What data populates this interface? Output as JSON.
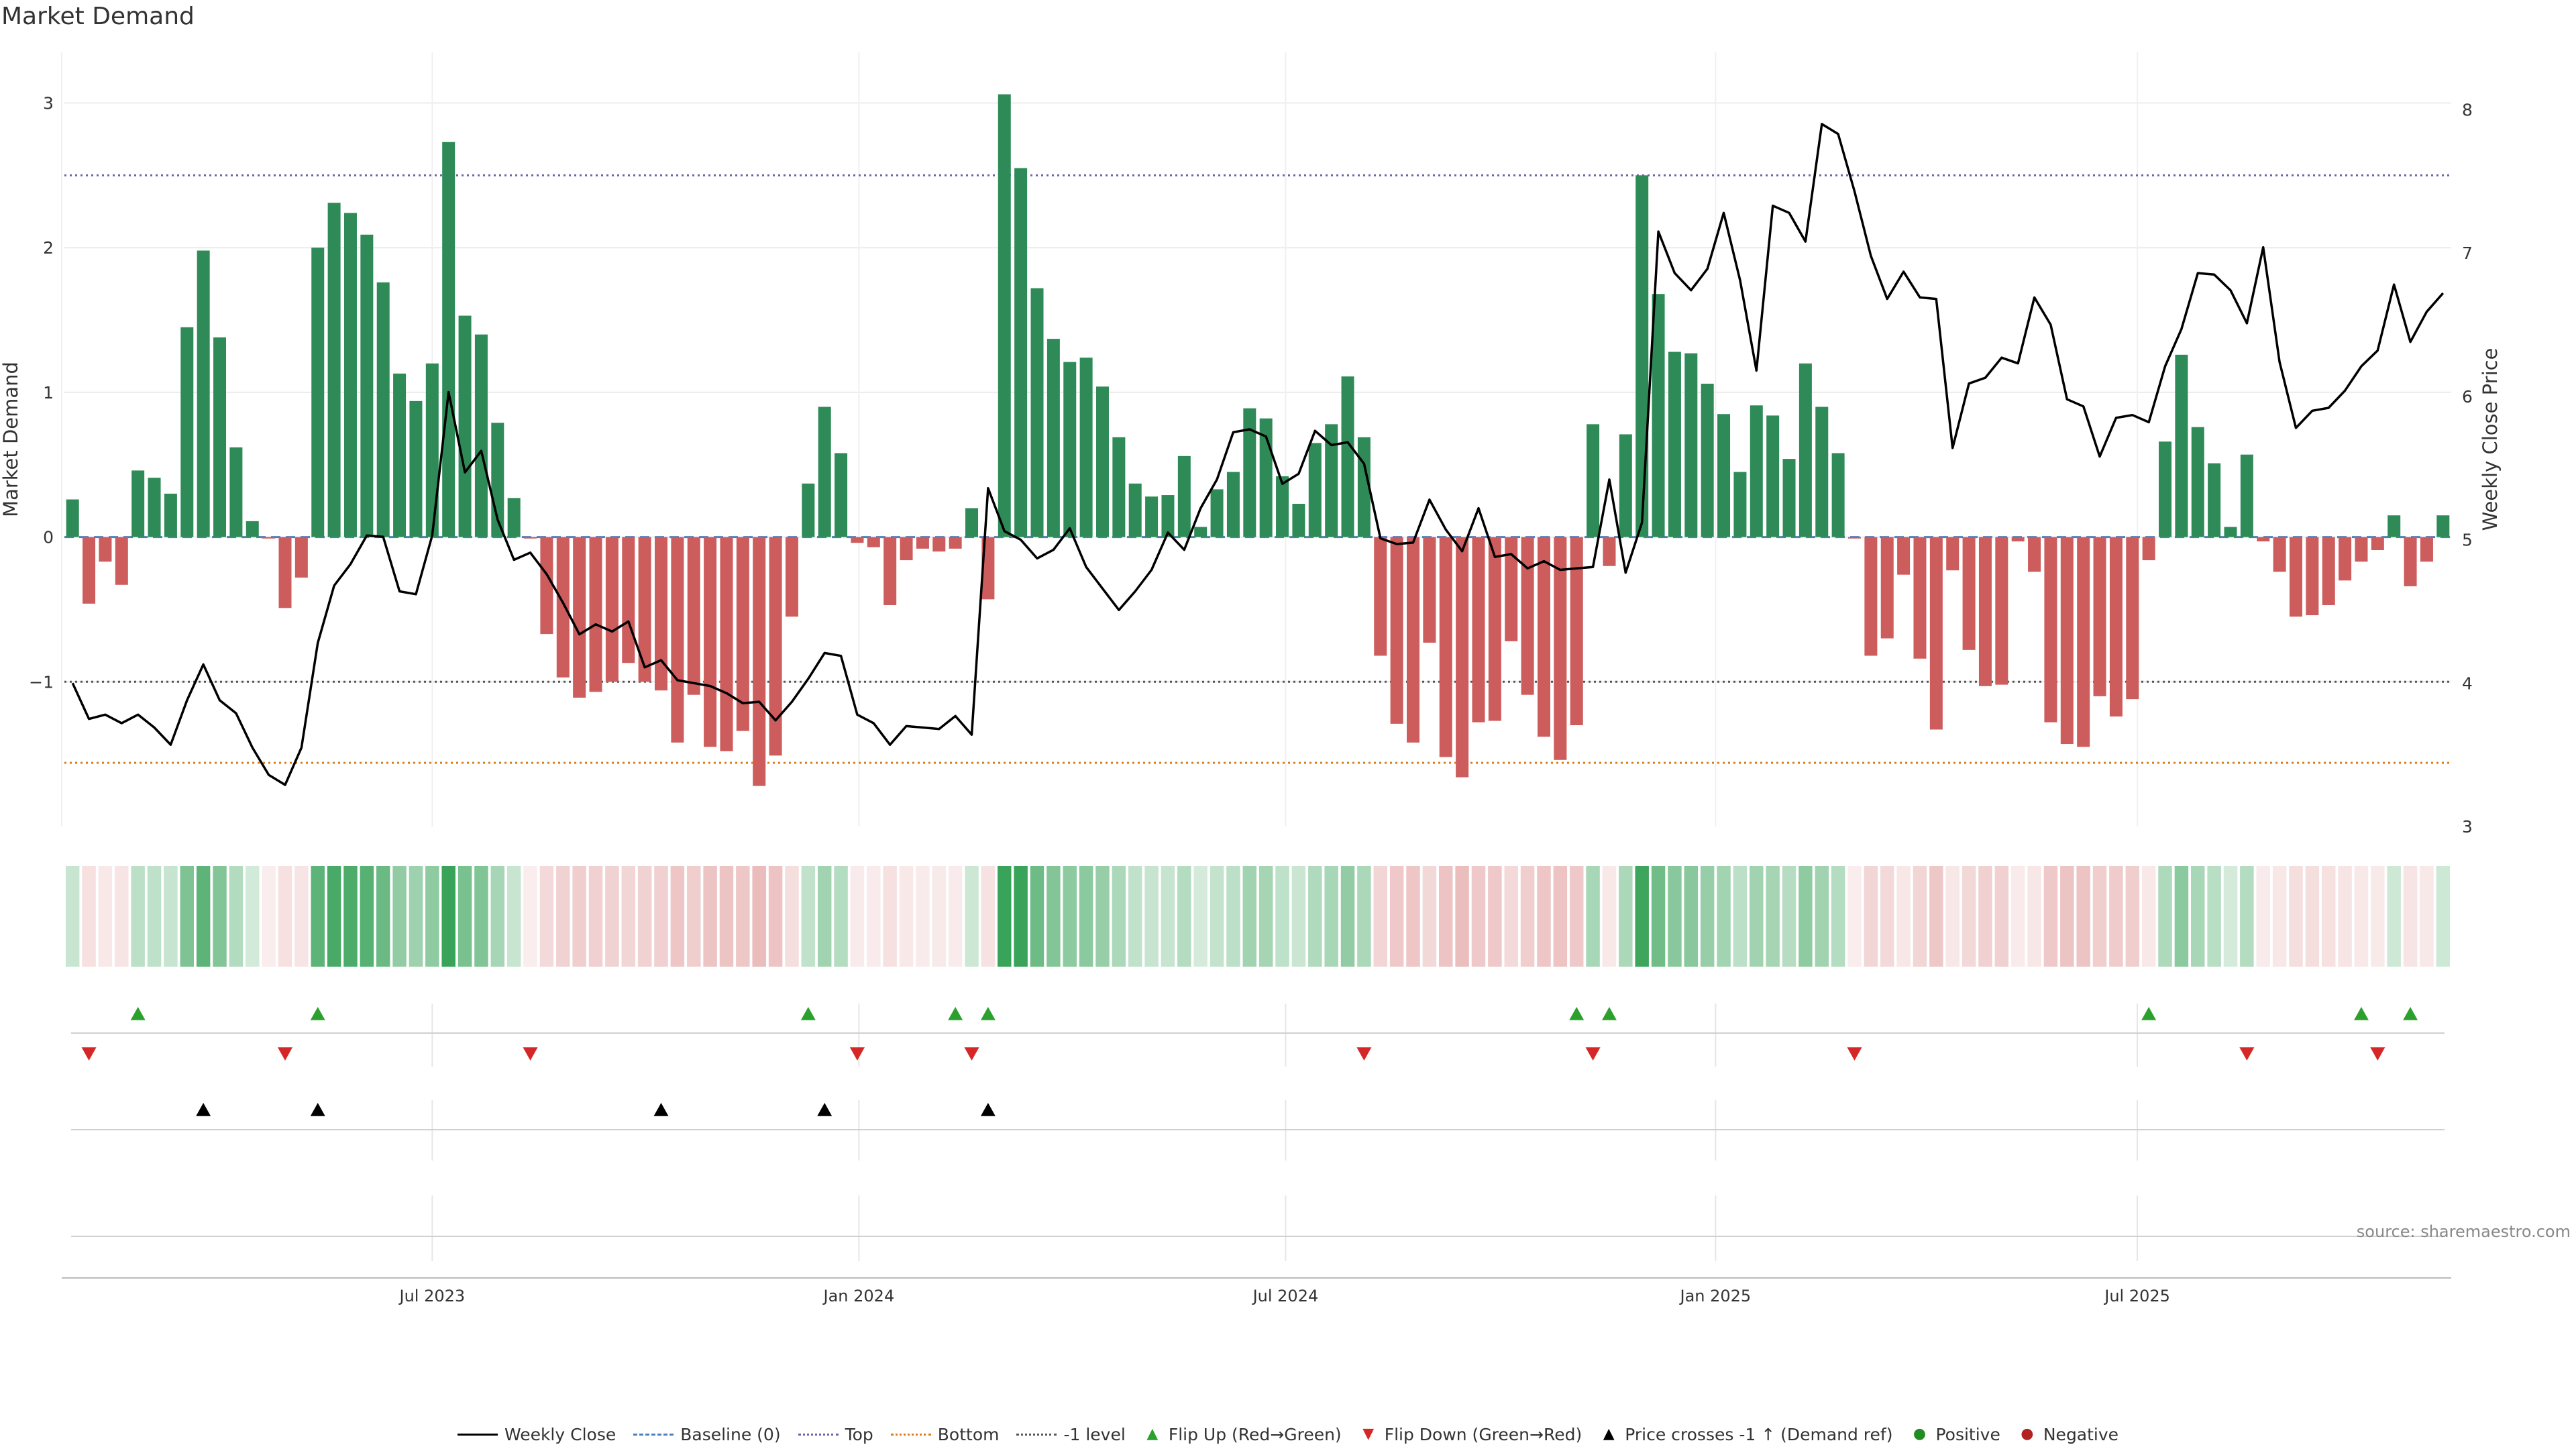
{
  "title": "Market Demand",
  "source": "source: sharemaestro.com",
  "colors": {
    "positive": "#2e8b57",
    "negative": "#cd5c5c",
    "top_line": "#6b63a8",
    "bottom_line": "#e07d10",
    "minus1_line": "#555555",
    "flip_up": "#2ca02c",
    "flip_down": "#d62728",
    "cross": "#000000"
  },
  "legend": [
    {
      "label": "Weekly Close",
      "icon": "solid-line"
    },
    {
      "label": "Baseline (0)",
      "icon": "dashed-line"
    },
    {
      "label": "Top",
      "icon": "dotted-line-purple"
    },
    {
      "label": "Bottom",
      "icon": "dotted-line-orange"
    },
    {
      "label": "-1 level",
      "icon": "dotted-line-gray"
    },
    {
      "label": "Flip Up (Red→Green)",
      "icon": "triangle-up-green"
    },
    {
      "label": "Flip Down (Green→Red)",
      "icon": "triangle-down-red"
    },
    {
      "label": "Price crosses -1 ↑ (Demand ref)",
      "icon": "triangle-up-black"
    },
    {
      "label": "Positive",
      "icon": "circle-green"
    },
    {
      "label": "Negative",
      "icon": "circle-red"
    }
  ],
  "chart_data": {
    "type": "bar",
    "ylabel": "Market Demand",
    "y2label": "Weekly Close Price",
    "ylim": [
      -2.0,
      3.35
    ],
    "y2lim": [
      3.0,
      8.4
    ],
    "yticks": [
      -1,
      0,
      1,
      2,
      3
    ],
    "yticks_labels": [
      "−1",
      "0",
      "1",
      "2",
      "3"
    ],
    "y2ticks": [
      3,
      4,
      5,
      6,
      7,
      8
    ],
    "xticks": [
      "Jul 2023",
      "Jan 2024",
      "Jul 2024",
      "Jan 2025",
      "Jul 2025"
    ],
    "xtick_weeks": [
      22.5,
      48.6,
      74.7,
      101.0,
      126.8
    ],
    "reference_lines": {
      "top": 2.5,
      "bottom": -1.56,
      "minus1": -1.0,
      "baseline": 0
    },
    "grid": true,
    "demand": [
      0.26,
      -0.46,
      -0.17,
      -0.33,
      0.46,
      0.41,
      0.3,
      1.45,
      1.98,
      1.38,
      0.62,
      0.11,
      -0.01,
      -0.49,
      -0.28,
      2.0,
      2.31,
      2.24,
      2.09,
      1.76,
      1.13,
      0.94,
      1.2,
      2.73,
      1.53,
      1.4,
      0.79,
      0.27,
      -0.01,
      -0.67,
      -0.97,
      -1.11,
      -1.07,
      -1.0,
      -0.87,
      -1.0,
      -1.06,
      -1.42,
      -1.09,
      -1.45,
      -1.48,
      -1.34,
      -1.72,
      -1.51,
      -0.55,
      0.37,
      0.9,
      0.58,
      -0.04,
      -0.07,
      -0.47,
      -0.16,
      -0.08,
      -0.1,
      -0.08,
      0.2,
      -0.43,
      3.06,
      2.55,
      1.72,
      1.37,
      1.21,
      1.24,
      1.04,
      0.69,
      0.37,
      0.28,
      0.29,
      0.56,
      0.07,
      0.33,
      0.45,
      0.89,
      0.82,
      0.42,
      0.23,
      0.65,
      0.78,
      1.11,
      0.69,
      -0.82,
      -1.29,
      -1.42,
      -0.73,
      -1.52,
      -1.66,
      -1.28,
      -1.27,
      -0.72,
      -1.09,
      -1.38,
      -1.54,
      -1.3,
      0.78,
      -0.2,
      0.71,
      2.5,
      1.68,
      1.28,
      1.27,
      1.06,
      0.85,
      0.45,
      0.91,
      0.84,
      0.54,
      1.2,
      0.9,
      0.58,
      -0.01,
      -0.82,
      -0.7,
      -0.26,
      -0.84,
      -1.33,
      -0.23,
      -0.78,
      -1.03,
      -1.02,
      -0.03,
      -0.24,
      -1.28,
      -1.43,
      -1.45,
      -1.1,
      -1.24,
      -1.12,
      -0.16,
      0.66,
      1.26,
      0.76,
      0.51,
      0.07,
      0.57,
      -0.03,
      -0.24,
      -0.55,
      -0.54,
      -0.47,
      -0.3,
      -0.17,
      -0.09,
      0.15,
      -0.34,
      -0.17,
      0.15
    ],
    "weekly_close": [
      4.0,
      3.75,
      3.78,
      3.72,
      3.78,
      3.69,
      3.57,
      3.88,
      4.13,
      3.88,
      3.79,
      3.55,
      3.36,
      3.29,
      3.55,
      4.28,
      4.68,
      4.83,
      5.03,
      5.02,
      4.64,
      4.62,
      5.03,
      6.03,
      5.47,
      5.62,
      5.14,
      4.86,
      4.91,
      4.76,
      4.56,
      4.34,
      4.41,
      4.36,
      4.43,
      4.11,
      4.16,
      4.02,
      4.0,
      3.98,
      3.93,
      3.86,
      3.87,
      3.74,
      3.87,
      4.03,
      4.21,
      4.19,
      3.78,
      3.72,
      3.57,
      3.7,
      3.69,
      3.68,
      3.77,
      3.64,
      5.36,
      5.06,
      5.0,
      4.87,
      4.93,
      5.08,
      4.81,
      4.66,
      4.51,
      4.64,
      4.79,
      5.05,
      4.93,
      5.22,
      5.42,
      5.75,
      5.77,
      5.72,
      5.39,
      5.46,
      5.76,
      5.66,
      5.68,
      5.53,
      5.01,
      4.97,
      4.98,
      5.28,
      5.07,
      4.92,
      5.22,
      4.88,
      4.9,
      4.8,
      4.85,
      4.79,
      4.8,
      4.81,
      5.42,
      4.77,
      5.12,
      7.15,
      6.86,
      6.74,
      6.89,
      7.28,
      6.81,
      6.18,
      7.33,
      7.28,
      7.08,
      7.9,
      7.83,
      7.43,
      6.98,
      6.68,
      6.87,
      6.69,
      6.68,
      5.64,
      6.09,
      6.13,
      6.27,
      6.23,
      6.69,
      6.5,
      5.98,
      5.93,
      5.58,
      5.85,
      5.87,
      5.82,
      6.21,
      6.47,
      6.86,
      6.85,
      6.74,
      6.51,
      7.04,
      6.24,
      5.78,
      5.9,
      5.92,
      6.04,
      6.21,
      6.32,
      6.78,
      6.38,
      6.59,
      6.72
    ],
    "intensity_strip": {
      "positive_color": "#2e8b57",
      "negative_color": "#cd5c5c"
    },
    "events": {
      "flip_up_weeks": [
        4,
        15,
        45,
        54,
        56,
        92,
        94,
        127,
        140,
        143
      ],
      "flip_down_weeks": [
        1,
        13,
        28,
        48,
        55,
        79,
        93,
        109,
        133,
        141
      ],
      "price_crosses_weeks": [
        8,
        15,
        36,
        46,
        56
      ]
    }
  }
}
